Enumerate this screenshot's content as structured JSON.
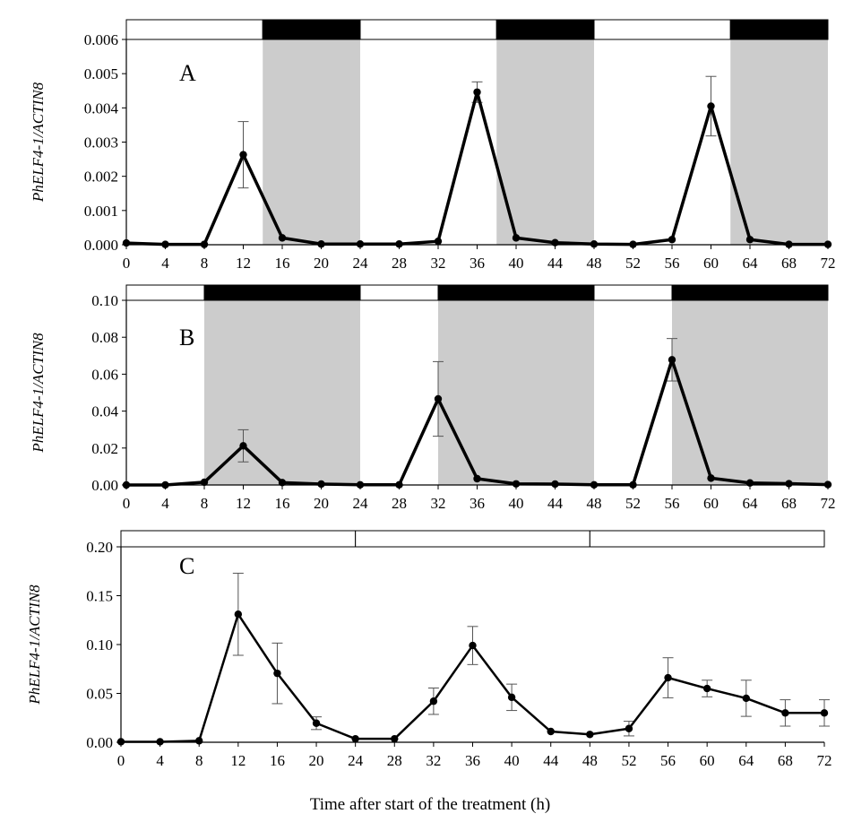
{
  "figure": {
    "xlabel": "Time after start of the treatment (h)",
    "colors": {
      "line": "#000000",
      "dark_shade": "#cccccc",
      "light_bar": "#ffffff",
      "dark_bar": "#000000",
      "error_bar": "#555555"
    }
  },
  "chart_data": [
    {
      "type": "line",
      "panel": "A",
      "ylabel": "PhELF4-1/ACTIN8",
      "x": [
        0,
        4,
        8,
        12,
        16,
        20,
        24,
        28,
        32,
        36,
        40,
        44,
        48,
        52,
        56,
        60,
        64,
        68,
        72
      ],
      "xticks": [
        "0",
        "4",
        "8",
        "12",
        "16",
        "20",
        "24",
        "28",
        "32",
        "36",
        "40",
        "44",
        "48",
        "52",
        "56",
        "60",
        "64",
        "68",
        "72"
      ],
      "xlim": [
        0,
        72
      ],
      "ylim": [
        0,
        0.006
      ],
      "yticks": [
        "0.000",
        "0.001",
        "0.002",
        "0.003",
        "0.004",
        "0.005",
        "0.006"
      ],
      "ytick_values": [
        0,
        0.001,
        0.002,
        0.003,
        0.004,
        0.005,
        0.006
      ],
      "series": [
        {
          "name": "PhELF4-1",
          "values": [
            5e-05,
            1e-05,
            1e-05,
            0.00263,
            0.0002,
            2e-05,
            2e-05,
            2e-05,
            0.0001,
            0.00446,
            0.0002,
            6e-05,
            2e-05,
            1e-05,
            0.00015,
            0.00405,
            0.00015,
            1e-05,
            1e-05
          ],
          "errors": [
            0,
            0,
            0,
            0.00097,
            0,
            0,
            0,
            0,
            0,
            0.0003,
            0,
            0,
            0,
            0,
            0,
            0.00087,
            0,
            0,
            0
          ]
        }
      ],
      "photoperiod": [
        {
          "start": 0,
          "end": 14,
          "phase": "light"
        },
        {
          "start": 14,
          "end": 24,
          "phase": "dark"
        },
        {
          "start": 24,
          "end": 38,
          "phase": "light"
        },
        {
          "start": 38,
          "end": 48,
          "phase": "dark"
        },
        {
          "start": 48,
          "end": 62,
          "phase": "light"
        },
        {
          "start": 62,
          "end": 72,
          "phase": "dark"
        }
      ]
    },
    {
      "type": "line",
      "panel": "B",
      "ylabel": "PhELF4-1/ACTIN8",
      "x": [
        0,
        4,
        8,
        12,
        16,
        20,
        24,
        28,
        32,
        36,
        40,
        44,
        48,
        52,
        56,
        60,
        64,
        68,
        72
      ],
      "xticks": [
        "0",
        "4",
        "8",
        "12",
        "16",
        "20",
        "24",
        "28",
        "32",
        "36",
        "40",
        "44",
        "48",
        "52",
        "56",
        "60",
        "64",
        "68",
        "72"
      ],
      "xlim": [
        0,
        72
      ],
      "ylim": [
        0,
        0.1
      ],
      "yticks": [
        "0.00",
        "0.02",
        "0.04",
        "0.06",
        "0.08",
        "0.10"
      ],
      "ytick_values": [
        0,
        0.02,
        0.04,
        0.06,
        0.08,
        0.1
      ],
      "series": [
        {
          "name": "PhELF4-1",
          "values": [
            0.0,
            0.0,
            0.0015,
            0.0212,
            0.0013,
            0.0005,
            0.0001,
            0.0001,
            0.0466,
            0.0034,
            0.0006,
            0.0005,
            0.0001,
            0.0001,
            0.0678,
            0.0037,
            0.0011,
            0.0007,
            0.0002
          ],
          "errors": [
            0,
            0,
            0,
            0.0087,
            0,
            0,
            0,
            0,
            0.0202,
            0,
            0,
            0,
            0,
            0,
            0.0115,
            0,
            0,
            0,
            0
          ]
        }
      ],
      "photoperiod": [
        {
          "start": 0,
          "end": 8,
          "phase": "light"
        },
        {
          "start": 8,
          "end": 24,
          "phase": "dark"
        },
        {
          "start": 24,
          "end": 32,
          "phase": "light"
        },
        {
          "start": 32,
          "end": 48,
          "phase": "dark"
        },
        {
          "start": 48,
          "end": 56,
          "phase": "light"
        },
        {
          "start": 56,
          "end": 72,
          "phase": "dark"
        }
      ]
    },
    {
      "type": "line",
      "panel": "C",
      "ylabel": "PhELF4-1/ACTIN8",
      "x": [
        0,
        4,
        8,
        12,
        16,
        20,
        24,
        28,
        32,
        36,
        40,
        44,
        48,
        52,
        56,
        60,
        64,
        68,
        72
      ],
      "xticks": [
        "0",
        "4",
        "8",
        "12",
        "16",
        "20",
        "24",
        "28",
        "32",
        "36",
        "40",
        "44",
        "48",
        "52",
        "56",
        "60",
        "64",
        "68",
        "72"
      ],
      "xlim": [
        0,
        72
      ],
      "ylim": [
        0,
        0.2
      ],
      "yticks": [
        "0.00",
        "0.05",
        "0.10",
        "0.15",
        "0.20"
      ],
      "ytick_values": [
        0,
        0.05,
        0.1,
        0.15,
        0.2
      ],
      "series": [
        {
          "name": "PhELF4-1",
          "values": [
            0.0005,
            0.0005,
            0.0015,
            0.131,
            0.0705,
            0.0195,
            0.0035,
            0.0035,
            0.042,
            0.099,
            0.046,
            0.011,
            0.008,
            0.014,
            0.066,
            0.055,
            0.045,
            0.03,
            0.03
          ],
          "errors": [
            0,
            0,
            0,
            0.042,
            0.031,
            0.0065,
            0,
            0,
            0.0135,
            0.0195,
            0.0135,
            0,
            0,
            0.0075,
            0.0205,
            0.0085,
            0.0185,
            0.0135,
            0.0135
          ]
        }
      ],
      "photoperiod": [
        {
          "start": 0,
          "end": 24,
          "phase": "light"
        },
        {
          "start": 24,
          "end": 48,
          "phase": "light"
        },
        {
          "start": 48,
          "end": 72,
          "phase": "light"
        }
      ]
    }
  ]
}
